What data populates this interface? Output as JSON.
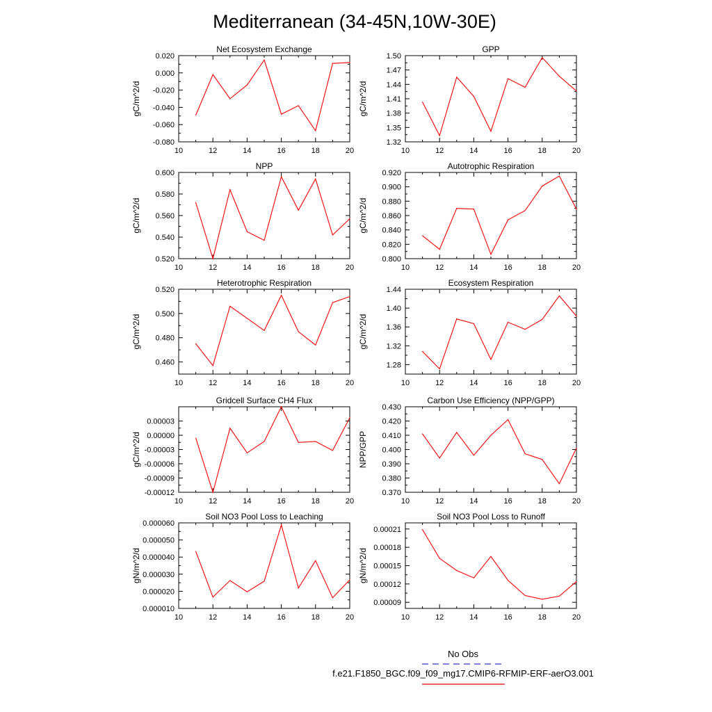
{
  "title": "Mediterranean (34-45N,10W-30E)",
  "chart_data": [
    {
      "type": "line",
      "title": "Net Ecosystem Exchange",
      "ylabel": "gC/m^2/d",
      "xlim": [
        10,
        20
      ],
      "xticks": [
        "10",
        "12",
        "14",
        "16",
        "18",
        "20"
      ],
      "ylim": [
        -0.08,
        0.02
      ],
      "yticks": [
        "0.020",
        "0.000",
        "-0.020",
        "-0.040",
        "-0.060",
        "-0.080"
      ],
      "x": [
        11,
        12,
        13,
        14,
        15,
        16,
        17,
        18,
        19,
        20
      ],
      "values": [
        -0.049,
        -0.002,
        -0.03,
        -0.014,
        0.015,
        -0.048,
        -0.038,
        -0.067,
        0.011,
        0.012
      ]
    },
    {
      "type": "line",
      "title": "GPP",
      "ylabel": "gC/m^2/d",
      "xlim": [
        10,
        20
      ],
      "xticks": [
        "10",
        "12",
        "14",
        "16",
        "18",
        "20"
      ],
      "ylim": [
        1.32,
        1.5
      ],
      "yticks": [
        "1.50",
        "1.47",
        "1.44",
        "1.41",
        "1.38",
        "1.35",
        "1.32"
      ],
      "x": [
        11,
        12,
        13,
        14,
        15,
        16,
        17,
        18,
        19,
        20
      ],
      "values": [
        1.403,
        1.333,
        1.455,
        1.415,
        1.342,
        1.452,
        1.434,
        1.496,
        1.457,
        1.426
      ]
    },
    {
      "type": "line",
      "title": "NPP",
      "ylabel": "gC/m^2/d",
      "xlim": [
        10,
        20
      ],
      "xticks": [
        "10",
        "12",
        "14",
        "16",
        "18",
        "20"
      ],
      "ylim": [
        0.52,
        0.6
      ],
      "yticks": [
        "0.600",
        "0.580",
        "0.560",
        "0.540",
        "0.520"
      ],
      "x": [
        11,
        12,
        13,
        14,
        15,
        16,
        17,
        18,
        19,
        20
      ],
      "values": [
        0.572,
        0.52,
        0.584,
        0.545,
        0.537,
        0.596,
        0.565,
        0.594,
        0.542,
        0.557
      ]
    },
    {
      "type": "line",
      "title": "Autotrophic Respiration",
      "ylabel": "gC/m^2/d",
      "xlim": [
        10,
        20
      ],
      "xticks": [
        "10",
        "12",
        "14",
        "16",
        "18",
        "20"
      ],
      "ylim": [
        0.8,
        0.92
      ],
      "yticks": [
        "0.920",
        "0.900",
        "0.880",
        "0.860",
        "0.840",
        "0.820",
        "0.800"
      ],
      "x": [
        11,
        12,
        13,
        14,
        15,
        16,
        17,
        18,
        19,
        20
      ],
      "values": [
        0.832,
        0.813,
        0.87,
        0.869,
        0.806,
        0.854,
        0.867,
        0.901,
        0.915,
        0.869
      ]
    },
    {
      "type": "line",
      "title": "Heterotrophic Respiration",
      "ylabel": "gC/m^2/d",
      "xlim": [
        10,
        20
      ],
      "xticks": [
        "10",
        "12",
        "14",
        "16",
        "18",
        "20"
      ],
      "ylim": [
        0.45,
        0.52
      ],
      "yticks": [
        "0.520",
        "0.500",
        "0.480",
        "0.460"
      ],
      "x": [
        11,
        12,
        13,
        14,
        15,
        16,
        17,
        18,
        19,
        20
      ],
      "values": [
        0.475,
        0.457,
        0.506,
        0.496,
        0.486,
        0.515,
        0.485,
        0.474,
        0.509,
        0.514
      ]
    },
    {
      "type": "line",
      "title": "Ecosystem Respiration",
      "ylabel": "gC/m^2/d",
      "xlim": [
        10,
        20
      ],
      "xticks": [
        "10",
        "12",
        "14",
        "16",
        "18",
        "20"
      ],
      "ylim": [
        1.26,
        1.44
      ],
      "yticks": [
        "1.44",
        "1.40",
        "1.36",
        "1.32",
        "1.28"
      ],
      "x": [
        11,
        12,
        13,
        14,
        15,
        16,
        17,
        18,
        19,
        20
      ],
      "values": [
        1.308,
        1.271,
        1.377,
        1.367,
        1.291,
        1.37,
        1.355,
        1.376,
        1.426,
        1.383
      ]
    },
    {
      "type": "line",
      "title": "Gridcell Surface CH4 Flux",
      "ylabel": "gC/m^2/d",
      "xlim": [
        10,
        20
      ],
      "xticks": [
        "10",
        "12",
        "14",
        "16",
        "18",
        "20"
      ],
      "ylim": [
        -0.00012,
        6e-05
      ],
      "yticks": [
        "0.00003",
        "0.00000",
        "-0.00003",
        "-0.00006",
        "-0.00009",
        "-0.00012"
      ],
      "x": [
        11,
        12,
        13,
        14,
        15,
        16,
        17,
        18,
        19,
        20
      ],
      "values": [
        -6e-06,
        -0.00012,
        1.5e-05,
        -3.7e-05,
        -1.3e-05,
        6e-05,
        -1.5e-05,
        -1.3e-05,
        -3.2e-05,
        3.7e-05
      ]
    },
    {
      "type": "line",
      "title": "Carbon Use Efficiency (NPP/GPP)",
      "ylabel": "NPP/GPP",
      "xlim": [
        10,
        20
      ],
      "xticks": [
        "10",
        "12",
        "14",
        "16",
        "18",
        "20"
      ],
      "ylim": [
        0.37,
        0.43
      ],
      "yticks": [
        "0.430",
        "0.420",
        "0.410",
        "0.400",
        "0.390",
        "0.380",
        "0.370"
      ],
      "x": [
        11,
        12,
        13,
        14,
        15,
        16,
        17,
        18,
        19,
        20
      ],
      "values": [
        0.411,
        0.394,
        0.412,
        0.396,
        0.41,
        0.421,
        0.397,
        0.393,
        0.376,
        0.401
      ]
    },
    {
      "type": "line",
      "title": "Soil NO3 Pool Loss to Leaching",
      "ylabel": "gN/m^2/d",
      "xlim": [
        10,
        20
      ],
      "xticks": [
        "10",
        "12",
        "14",
        "16",
        "18",
        "20"
      ],
      "ylim": [
        1e-05,
        6e-05
      ],
      "yticks": [
        "0.000060",
        "0.000050",
        "0.000040",
        "0.000030",
        "0.000020",
        "0.000010"
      ],
      "x": [
        11,
        12,
        13,
        14,
        15,
        16,
        17,
        18,
        19,
        20
      ],
      "values": [
        4.33e-05,
        1.66e-05,
        2.63e-05,
        1.97e-05,
        2.59e-05,
        5.88e-05,
        2.19e-05,
        3.79e-05,
        1.62e-05,
        2.67e-05
      ]
    },
    {
      "type": "line",
      "title": "Soil NO3 Pool Loss to Runoff",
      "ylabel": "gN/m^2/d",
      "xlim": [
        10,
        20
      ],
      "xticks": [
        "10",
        "12",
        "14",
        "16",
        "18",
        "20"
      ],
      "ylim": [
        8e-05,
        0.00022
      ],
      "yticks": [
        "0.00021",
        "0.00018",
        "0.00015",
        "0.00012",
        "0.00009"
      ],
      "x": [
        11,
        12,
        13,
        14,
        15,
        16,
        17,
        18,
        19,
        20
      ],
      "values": [
        0.000209,
        0.000162,
        0.000142,
        0.00013,
        0.000165,
        0.000126,
        0.000101,
        9.5e-05,
        0.0001,
        0.000124
      ]
    }
  ],
  "legend": [
    {
      "label": "No Obs",
      "color": "#3333cc",
      "style": "dashed"
    },
    {
      "label": "f.e21.F1850_BGC.f09_f09_mg17.CMIP6-RFMIP-ERF-aerO3.001",
      "color": "#dd0000",
      "style": "solid"
    }
  ],
  "line_color": "#ff0000"
}
